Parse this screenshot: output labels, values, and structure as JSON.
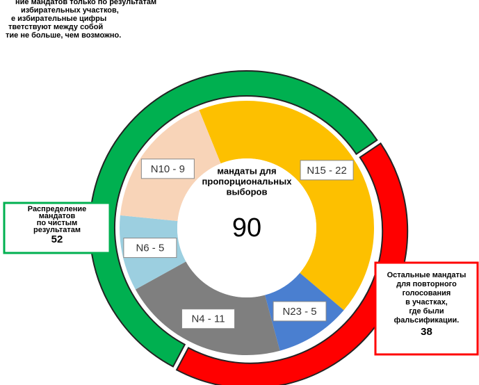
{
  "chart_data": {
    "type": "nested_donut",
    "annotation": [
      "ние мандатов только по результатам",
      "избирательных участков,",
      "е избирательные цифры",
      "тветствуют между собой",
      "тие не больше, чем возможно."
    ],
    "center_label": [
      "мандаты для",
      "пропорциональных",
      "выборов"
    ],
    "center_value": 90,
    "inner": {
      "labels": [
        "N15 - 22",
        "N23 - 5",
        "N4 - 11",
        "N6 - 5",
        "N10 - 9"
      ],
      "values": [
        22,
        5,
        11,
        5,
        9
      ],
      "colors": [
        "#fdc000",
        "#4a7fd0",
        "#7f7f7f",
        "#9ccfe0",
        "#f8d4b8"
      ]
    },
    "outer": {
      "labels": [
        [
          "Распределение",
          "мандатов",
          "по чистым",
          "результатам"
        ],
        [
          "Остальные мандаты",
          "для повторного",
          "голосования",
          "в участках,",
          "где были",
          "фальсификации."
        ]
      ],
      "values": [
        52,
        38
      ],
      "colors": [
        "#00b050",
        "#ff0000"
      ]
    }
  }
}
